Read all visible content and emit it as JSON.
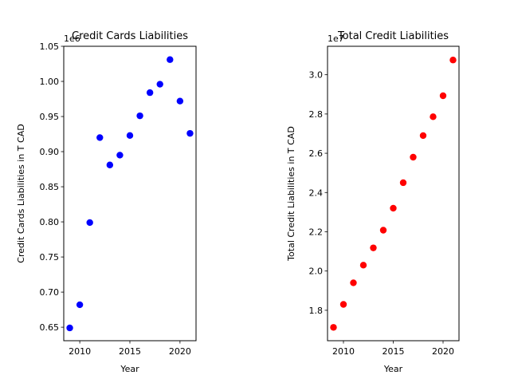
{
  "chart_data": [
    {
      "type": "scatter",
      "title": "Credit Cards Liabilities",
      "xlabel": "Year",
      "ylabel": "Credit Cards Liabilities in T CAD",
      "offset_text": "1e6",
      "color": "#0000ff",
      "xlim": [
        2008.4,
        2021.6
      ],
      "ylim": [
        0.6308,
        1.05
      ],
      "xticks": [
        2010,
        2015,
        2020
      ],
      "yticks": [
        0.65,
        0.7,
        0.75,
        0.8,
        0.85,
        0.9,
        0.95,
        1.0,
        1.05
      ],
      "ytick_labels": [
        "0.65",
        "0.70",
        "0.75",
        "0.80",
        "0.85",
        "0.90",
        "0.95",
        "1.00",
        "1.05"
      ],
      "grid": false,
      "x": [
        2009,
        2010,
        2011,
        2012,
        2013,
        2014,
        2015,
        2016,
        2017,
        2018,
        2019,
        2020,
        2021
      ],
      "y": [
        0.649,
        0.682,
        0.799,
        0.92,
        0.881,
        0.895,
        0.923,
        0.951,
        0.984,
        0.996,
        1.031,
        0.972,
        0.926
      ]
    },
    {
      "type": "scatter",
      "title": "Total Credit Liabilities",
      "xlabel": "Year",
      "ylabel": "Total Credit Liabilities in T CAD",
      "offset_text": "1e7",
      "color": "#ff0000",
      "xlim": [
        2008.4,
        2021.6
      ],
      "ylim": [
        1.645,
        3.145
      ],
      "xticks": [
        2010,
        2015,
        2020
      ],
      "yticks": [
        1.8,
        2.0,
        2.2,
        2.4,
        2.6,
        2.8,
        3.0
      ],
      "ytick_labels": [
        "1.8",
        "2.0",
        "2.2",
        "2.4",
        "2.6",
        "2.8",
        "3.0"
      ],
      "grid": false,
      "x": [
        2009,
        2010,
        2011,
        2012,
        2013,
        2014,
        2015,
        2016,
        2017,
        2018,
        2019,
        2020,
        2021
      ],
      "y": [
        1.713,
        1.83,
        1.94,
        2.03,
        2.118,
        2.208,
        2.32,
        2.45,
        2.58,
        2.69,
        2.786,
        2.893,
        3.075
      ]
    }
  ]
}
